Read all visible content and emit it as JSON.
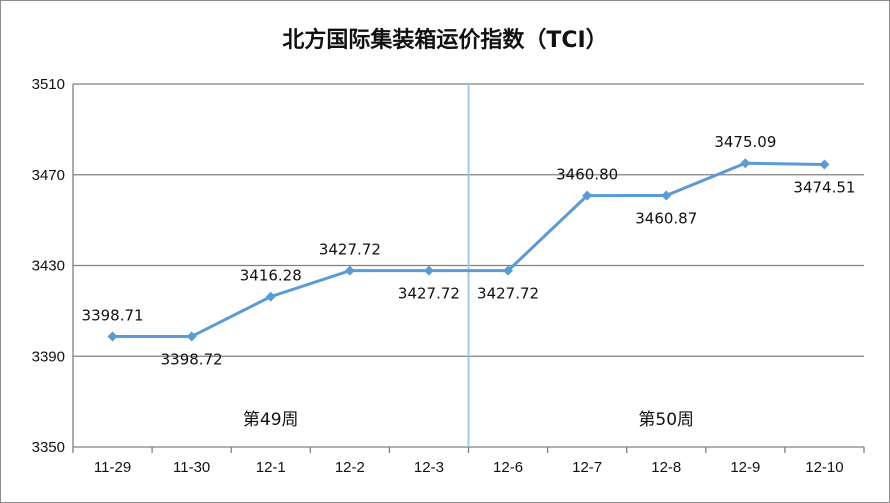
{
  "chart_data": {
    "type": "line",
    "title": "北方国际集装箱运价指数（TCI）",
    "categories": [
      "11-29",
      "11-30",
      "12-1",
      "12-2",
      "12-3",
      "12-6",
      "12-7",
      "12-8",
      "12-9",
      "12-10"
    ],
    "values": [
      3398.71,
      3398.72,
      3416.28,
      3427.72,
      3427.72,
      3427.72,
      3460.8,
      3460.87,
      3475.09,
      3474.51
    ],
    "data_labels": [
      "3398.71",
      "3398.72",
      "3416.28",
      "3427.72",
      "3427.72",
      "3427.72",
      "3460.80",
      "3460.87",
      "3475.09",
      "3474.51"
    ],
    "label_position": [
      "above",
      "below",
      "above",
      "above",
      "below",
      "below",
      "above",
      "below",
      "above",
      "below"
    ],
    "ylim": [
      3350,
      3510
    ],
    "yticks": [
      "3350",
      "3390",
      "3430",
      "3470",
      "3510"
    ],
    "grid": "horizontal",
    "marker": "diamond",
    "colors": {
      "line": "#5b9bd5",
      "grid": "#808080",
      "divider": "#9dc3e6"
    },
    "annotations": [
      {
        "text": "第49周",
        "group": [
          "11-29",
          "12-3"
        ]
      },
      {
        "text": "第50周",
        "group": [
          "12-6",
          "12-10"
        ]
      }
    ],
    "divider_after": "12-3"
  }
}
